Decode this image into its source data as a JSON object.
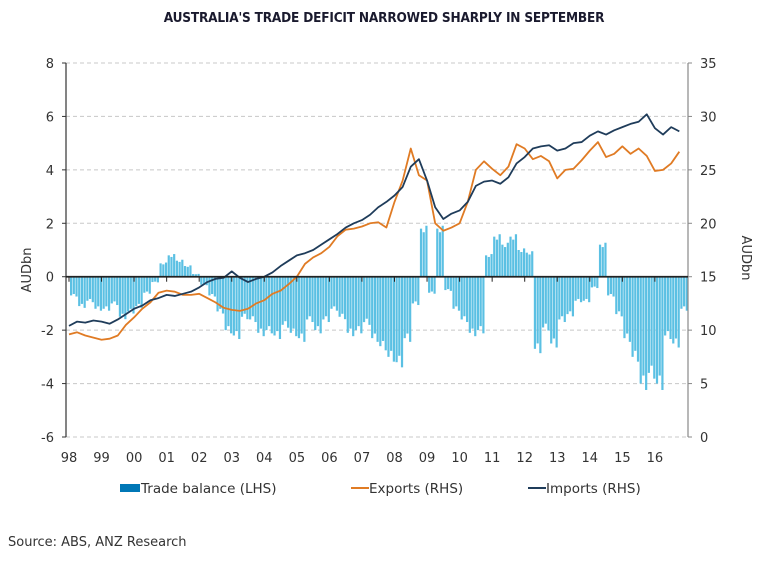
{
  "title": "AUSTRALIA'S TRADE DEFICIT NARROWED SHARPLY IN SEPTEMBER",
  "source": "Source: ABS, ANZ Research",
  "colors": {
    "trade_balance": "#5bc0e3",
    "trade_balance_legend": "#0077b6",
    "exports": "#e07b24",
    "imports": "#1f3c5a",
    "grid": "#c8c8c8",
    "axis": "#333333"
  },
  "chart_data": {
    "type": "bar+line",
    "title": "AUSTRALIA'S TRADE DEFICIT NARROWED SHARPLY IN SEPTEMBER",
    "xlabel": "",
    "ylabel_left": "AUDbn",
    "ylabel_right": "AUDbn",
    "ylim_left": [
      -6,
      8
    ],
    "ylim_right": [
      0,
      35
    ],
    "yticks_left": [
      "-6",
      "-4",
      "-2",
      "0",
      "2",
      "4",
      "6",
      "8"
    ],
    "yticks_right": [
      "0",
      "5",
      "10",
      "15",
      "20",
      "25",
      "30",
      "35"
    ],
    "xticks": [
      "98",
      "99",
      "00",
      "01",
      "02",
      "03",
      "04",
      "05",
      "06",
      "07",
      "08",
      "09",
      "10",
      "11",
      "12",
      "13",
      "14",
      "15",
      "16"
    ],
    "grid": true,
    "legend": "bottom",
    "legend_entries": [
      "Trade balance (LHS)",
      "Exports (RHS)",
      "Imports (RHS)"
    ],
    "x": [
      1998.0,
      1998.25,
      1998.5,
      1998.75,
      1999.0,
      1999.25,
      1999.5,
      1999.75,
      2000.0,
      2000.25,
      2000.5,
      2000.75,
      2001.0,
      2001.25,
      2001.5,
      2001.75,
      2002.0,
      2002.25,
      2002.5,
      2002.75,
      2003.0,
      2003.25,
      2003.5,
      2003.75,
      2004.0,
      2004.25,
      2004.5,
      2004.75,
      2005.0,
      2005.25,
      2005.5,
      2005.75,
      2006.0,
      2006.25,
      2006.5,
      2006.75,
      2007.0,
      2007.25,
      2007.5,
      2007.75,
      2008.0,
      2008.25,
      2008.5,
      2008.75,
      2009.0,
      2009.25,
      2009.5,
      2009.75,
      2010.0,
      2010.25,
      2010.5,
      2010.75,
      2011.0,
      2011.25,
      2011.5,
      2011.75,
      2012.0,
      2012.25,
      2012.5,
      2012.75,
      2013.0,
      2013.25,
      2013.5,
      2013.75,
      2014.0,
      2014.25,
      2014.5,
      2014.75,
      2015.0,
      2015.25,
      2015.5,
      2015.75,
      2016.0,
      2016.25,
      2016.5,
      2016.75
    ],
    "series": [
      {
        "name": "Trade balance (LHS)",
        "axis": "left",
        "type": "bar",
        "values": [
          -0.7,
          -1.1,
          -0.9,
          -1.2,
          -1.2,
          -1.0,
          -1.5,
          -1.3,
          -1.1,
          -0.6,
          -0.2,
          0.5,
          0.8,
          0.6,
          0.4,
          0.1,
          -0.3,
          -0.7,
          -1.3,
          -2.0,
          -2.2,
          -1.5,
          -1.6,
          -2.1,
          -2.0,
          -2.2,
          -1.8,
          -2.1,
          -2.3,
          -1.6,
          -2.0,
          -1.6,
          -1.2,
          -1.5,
          -2.1,
          -2.0,
          -1.7,
          -2.3,
          -2.6,
          -3.0,
          -3.2,
          -2.3,
          -1.0,
          1.8,
          -0.6,
          1.8,
          -0.5,
          -1.2,
          -1.6,
          -2.1,
          -2.0,
          0.8,
          1.5,
          1.2,
          1.5,
          1.0,
          0.9,
          -2.7,
          -1.9,
          -2.5,
          -1.6,
          -1.4,
          -0.9,
          -0.9,
          -0.4,
          1.2,
          -0.7,
          -1.4,
          -2.3,
          -3.0,
          -4.0,
          -3.6,
          -4.0,
          -2.2,
          -2.5,
          -1.2
        ]
      },
      {
        "name": "Exports (RHS)",
        "axis": "right",
        "type": "line",
        "values": [
          9.6,
          9.8,
          9.5,
          9.3,
          9.1,
          9.2,
          9.5,
          10.5,
          11.2,
          12.0,
          12.6,
          13.5,
          13.7,
          13.6,
          13.3,
          13.3,
          13.4,
          13.0,
          12.6,
          12.1,
          11.9,
          11.8,
          12.0,
          12.5,
          12.8,
          13.4,
          13.7,
          14.3,
          15.0,
          16.2,
          16.8,
          17.2,
          17.8,
          18.8,
          19.4,
          19.5,
          19.7,
          20.0,
          20.1,
          19.6,
          22.0,
          24.0,
          27.0,
          24.5,
          24.0,
          20.0,
          19.3,
          19.6,
          20.0,
          22.0,
          25.0,
          25.8,
          25.1,
          24.5,
          25.3,
          27.4,
          27.0,
          26.0,
          26.3,
          25.8,
          24.2,
          25.0,
          25.1,
          25.9,
          26.8,
          27.6,
          26.2,
          26.5,
          27.2,
          26.5,
          27.0,
          26.3,
          24.9,
          25.0,
          25.6,
          26.7
        ]
      },
      {
        "name": "Imports (RHS)",
        "axis": "right",
        "type": "line",
        "values": [
          10.4,
          10.8,
          10.7,
          10.9,
          10.8,
          10.6,
          11.0,
          11.5,
          12.0,
          12.3,
          12.8,
          13.0,
          13.3,
          13.2,
          13.4,
          13.6,
          14.0,
          14.5,
          14.8,
          14.9,
          15.5,
          14.9,
          14.5,
          14.8,
          15.0,
          15.4,
          16.0,
          16.5,
          17.0,
          17.2,
          17.5,
          18.0,
          18.5,
          19.0,
          19.6,
          20.0,
          20.3,
          20.8,
          21.5,
          22.0,
          22.6,
          23.4,
          25.3,
          26.0,
          24.0,
          21.5,
          20.4,
          20.9,
          21.2,
          22.0,
          23.5,
          23.9,
          24.0,
          23.7,
          24.3,
          25.6,
          26.2,
          27.0,
          27.2,
          27.3,
          26.8,
          27.0,
          27.5,
          27.6,
          28.2,
          28.6,
          28.3,
          28.7,
          29.0,
          29.3,
          29.5,
          30.2,
          28.9,
          28.3,
          29.0,
          28.6
        ]
      }
    ]
  }
}
